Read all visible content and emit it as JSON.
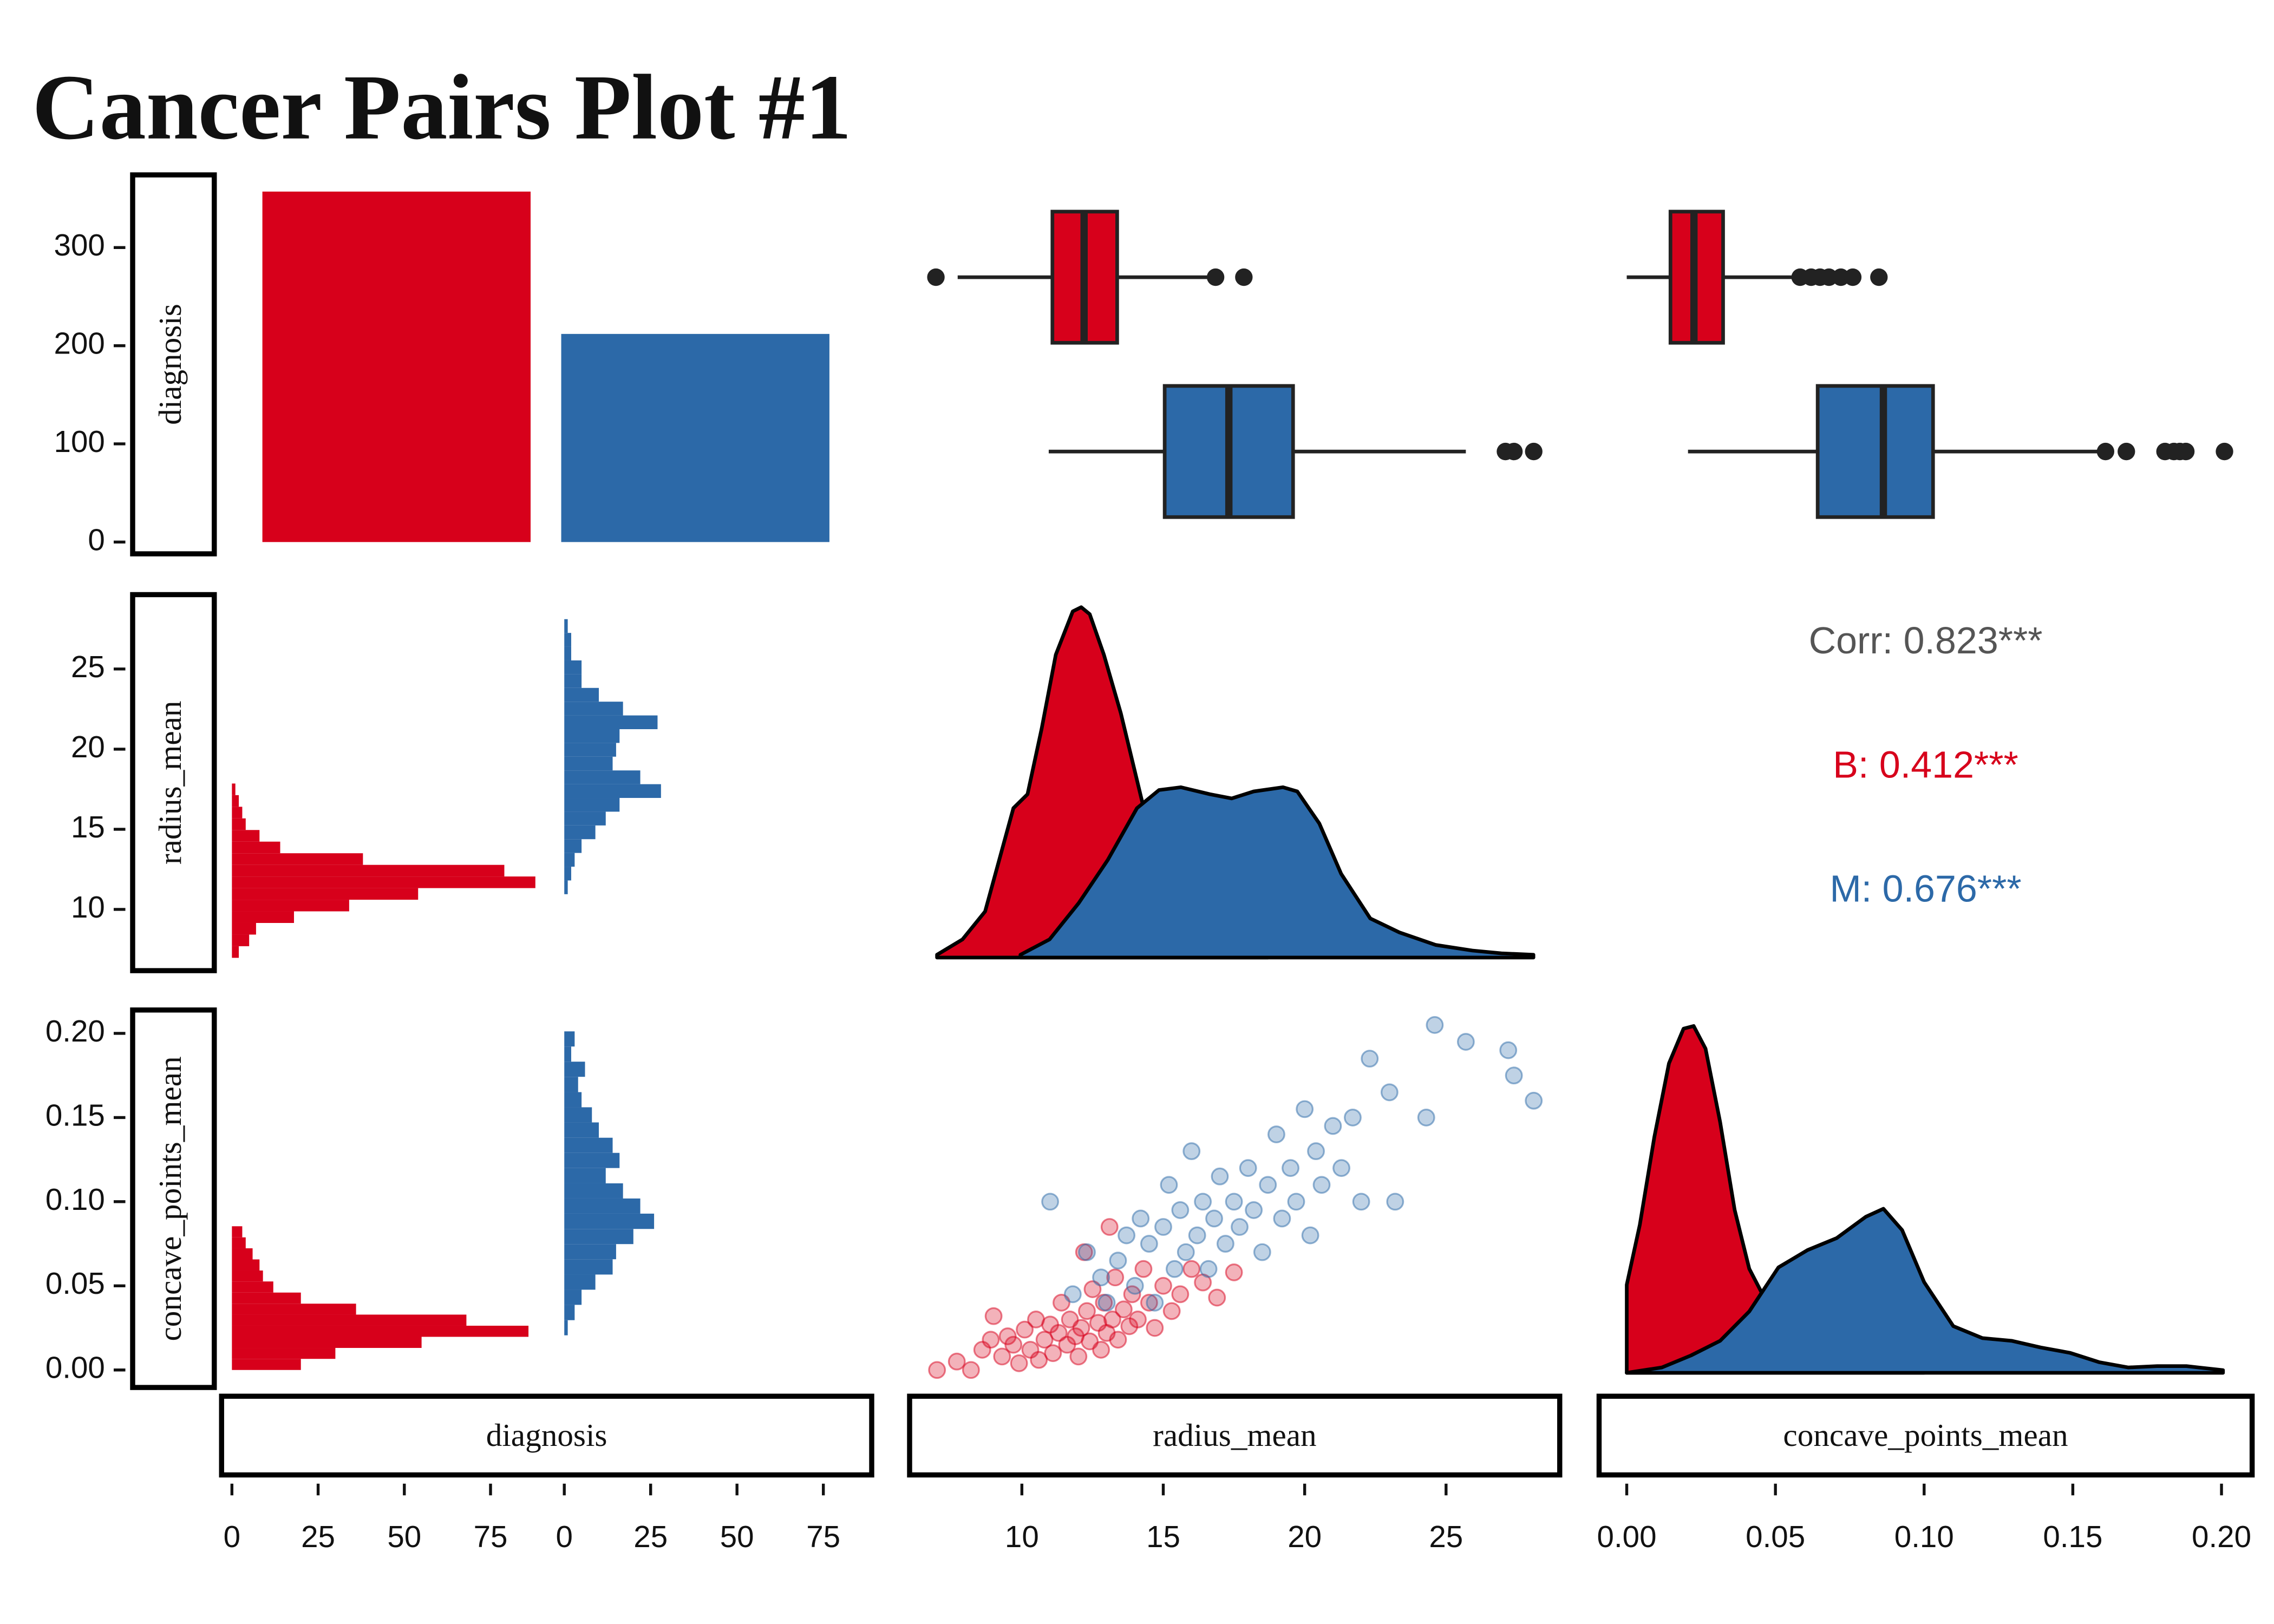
{
  "title": "Cancer Pairs Plot #1",
  "variables": [
    "diagnosis",
    "radius_mean",
    "concave_points_mean"
  ],
  "row_axes": [
    {
      "ylim": [
        -12,
        374
      ],
      "yticks": [
        0,
        100,
        200,
        300
      ]
    },
    {
      "ylim": [
        6.18,
        29.64
      ],
      "yticks": [
        10,
        15,
        20,
        25
      ]
    },
    {
      "ylim": [
        -0.0104,
        0.2139
      ],
      "yticks": [
        {
          "value": 0,
          "label": "0.00"
        },
        0.05,
        {
          "value": 0.1,
          "label": "0.10"
        },
        0.15,
        {
          "value": 0.2,
          "label": "0.20"
        }
      ]
    }
  ],
  "column_axes": [
    [
      {
        "xlim": [
          -3,
          90
        ],
        "xticks": [
          0,
          25,
          50,
          75
        ]
      },
      {
        "xlim": [
          -3,
          89
        ],
        "xticks": [
          0,
          25,
          50,
          75
        ]
      }
    ],
    [
      {
        "xlim": [
          6.03,
          29.02
        ],
        "xticks": [
          10,
          15,
          20,
          25
        ]
      }
    ],
    [
      {
        "xlim": [
          -0.0093,
          0.2103
        ],
        "xticks": [
          {
            "value": 0,
            "label": "0.00"
          },
          0.05,
          {
            "value": 0.1,
            "label": "0.10"
          },
          0.15,
          {
            "value": 0.2,
            "label": "0.20"
          }
        ]
      }
    ]
  ],
  "chart_data": [
    {
      "type": "bar",
      "values": [
        357,
        212
      ],
      "colors": [
        "#d7001b",
        "#2c69a8"
      ]
    },
    {
      "type": "boxplot",
      "series": [
        {
          "color": "#d7001b",
          "whisker_low": 7.73,
          "q1": 11.08,
          "median": 12.2,
          "q3": 13.37,
          "whisker_high": 16.55,
          "outliers": [
            6.96,
            16.85,
            17.85
          ]
        },
        {
          "color": "#2c69a8",
          "whisker_low": 10.95,
          "q1": 15.05,
          "median": 17.32,
          "q3": 19.59,
          "whisker_high": 25.7,
          "outliers": [
            27.1,
            27.4,
            28.1
          ]
        }
      ]
    },
    {
      "type": "boxplot",
      "series": [
        {
          "color": "#d7001b",
          "whisker_low": 0,
          "q1": 0.0147,
          "median": 0.0226,
          "q3": 0.0324,
          "whisker_high": 0.056,
          "outliers": [
            0.0583,
            0.062,
            0.065,
            0.068,
            0.072,
            0.076,
            0.0848
          ]
        },
        {
          "color": "#2c69a8",
          "whisker_low": 0.0206,
          "q1": 0.0642,
          "median": 0.0863,
          "q3": 0.103,
          "whisker_high": 0.159,
          "outliers": [
            0.161,
            0.168,
            0.181,
            0.184,
            0.186,
            0.188,
            0.201
          ]
        }
      ]
    },
    {
      "type": "histogram",
      "series": [
        {
          "color": "#d7001b",
          "bins": [
            6.98,
            7.705,
            8.43,
            9.155,
            9.88,
            10.605,
            11.33,
            12.055,
            12.78,
            13.505,
            14.23,
            14.955,
            15.68,
            16.405,
            17.13,
            17.855
          ],
          "counts": [
            2,
            5,
            7,
            18,
            34,
            54,
            88,
            79,
            38,
            14,
            8,
            4,
            3,
            2,
            1
          ]
        },
        {
          "color": "#2c69a8",
          "bins": [
            10.95,
            11.808,
            12.666,
            13.524,
            14.382,
            15.24,
            16.098,
            16.956,
            17.814,
            18.672,
            19.53,
            20.388,
            21.246,
            22.104,
            22.962,
            23.82,
            24.678,
            25.536,
            26.394,
            27.252,
            28.11
          ],
          "counts": [
            1,
            2,
            3,
            5,
            9,
            12,
            16,
            28,
            22,
            14,
            15,
            16,
            27,
            17,
            10,
            5,
            5,
            2,
            2,
            1
          ]
        }
      ]
    },
    {
      "type": "density",
      "ylim": [
        -0.0094,
        0.26
      ],
      "series": [
        {
          "color": "#d7001b",
          "x": [
            7.0,
            7.9,
            8.7,
            9.2,
            9.7,
            10.2,
            10.7,
            11.2,
            11.8,
            12.1,
            12.4,
            12.9,
            13.5,
            14.0,
            14.5,
            15.0,
            15.6,
            16.4,
            17.4,
            18.7
          ],
          "values": [
            0.002,
            0.013,
            0.033,
            0.07,
            0.107,
            0.117,
            0.164,
            0.217,
            0.248,
            0.251,
            0.246,
            0.217,
            0.175,
            0.133,
            0.091,
            0.06,
            0.033,
            0.016,
            0.007,
            0.002
          ]
        },
        {
          "color": "#2c69a8",
          "x": [
            9.95,
            10.98,
            12.01,
            13.04,
            14.07,
            14.85,
            15.62,
            16.65,
            17.42,
            18.2,
            19.23,
            19.74,
            20.52,
            21.29,
            22.32,
            23.35,
            24.64,
            25.93,
            26.96,
            28.09
          ],
          "values": [
            0.002,
            0.013,
            0.039,
            0.07,
            0.107,
            0.12,
            0.122,
            0.117,
            0.114,
            0.119,
            0.122,
            0.119,
            0.096,
            0.06,
            0.028,
            0.018,
            0.009,
            0.005,
            0.003,
            0.002
          ]
        }
      ]
    },
    {
      "type": "text",
      "lines": [
        {
          "text": "Corr: 0.823***",
          "color": "#555555"
        },
        {
          "text": "B: 0.412***",
          "color": "#d7001b"
        },
        {
          "text": "M: 0.676***",
          "color": "#2c69a8"
        }
      ]
    },
    {
      "type": "histogram",
      "series": [
        {
          "color": "#d7001b",
          "bins": [
            0,
            0.0066,
            0.0131,
            0.0197,
            0.0263,
            0.0329,
            0.0394,
            0.046,
            0.0526,
            0.0591,
            0.0657,
            0.0723,
            0.0788,
            0.0854
          ],
          "counts": [
            20,
            30,
            55,
            86,
            68,
            36,
            20,
            12,
            9,
            8,
            6,
            4,
            3
          ]
        },
        {
          "color": "#2c69a8",
          "bins": [
            0.0206,
            0.0296,
            0.0387,
            0.0477,
            0.0567,
            0.0658,
            0.0748,
            0.0838,
            0.0929,
            0.1019,
            0.1109,
            0.12,
            0.129,
            0.138,
            0.1471,
            0.1561,
            0.1651,
            0.1742,
            0.1832,
            0.1922,
            0.2012
          ],
          "counts": [
            1,
            3,
            5,
            9,
            14,
            15,
            20,
            26,
            22,
            17,
            12,
            16,
            14,
            10,
            8,
            5,
            4,
            6,
            2,
            3
          ]
        }
      ]
    },
    {
      "type": "scatter",
      "series": [
        {
          "color": "#d7001b",
          "x": [
            7.0,
            7.7,
            8.2,
            8.6,
            8.9,
            9.0,
            9.3,
            9.5,
            9.7,
            9.9,
            10.1,
            10.3,
            10.5,
            10.6,
            10.8,
            11.0,
            11.1,
            11.3,
            11.4,
            11.6,
            11.7,
            11.9,
            12.0,
            12.1,
            12.3,
            12.4,
            12.5,
            12.7,
            12.8,
            12.9,
            13.0,
            13.2,
            13.3,
            13.4,
            13.6,
            13.8,
            13.9,
            14.1,
            14.3,
            14.5,
            14.7,
            15.0,
            15.3,
            15.6,
            16.0,
            16.4,
            16.9,
            17.5,
            12.2,
            13.1
          ],
          "values": [
            0.0,
            0.005,
            0.0,
            0.012,
            0.018,
            0.032,
            0.008,
            0.02,
            0.015,
            0.004,
            0.024,
            0.012,
            0.03,
            0.006,
            0.018,
            0.027,
            0.01,
            0.022,
            0.04,
            0.015,
            0.03,
            0.02,
            0.008,
            0.025,
            0.035,
            0.017,
            0.048,
            0.028,
            0.012,
            0.04,
            0.022,
            0.03,
            0.055,
            0.018,
            0.036,
            0.026,
            0.045,
            0.03,
            0.06,
            0.04,
            0.025,
            0.05,
            0.035,
            0.045,
            0.06,
            0.052,
            0.043,
            0.058,
            0.07,
            0.085
          ]
        },
        {
          "color": "#2c69a8",
          "x": [
            11.0,
            11.8,
            12.3,
            12.8,
            13.0,
            13.4,
            13.7,
            14.0,
            14.2,
            14.5,
            14.7,
            15.0,
            15.2,
            15.4,
            15.6,
            15.8,
            16.0,
            16.2,
            16.4,
            16.6,
            16.8,
            17.0,
            17.2,
            17.5,
            17.7,
            18.0,
            18.2,
            18.5,
            18.7,
            19.0,
            19.2,
            19.5,
            19.7,
            20.0,
            20.2,
            20.4,
            20.6,
            21.0,
            21.3,
            21.7,
            22.0,
            22.3,
            23.0,
            23.2,
            24.3,
            24.6,
            25.7,
            27.2,
            27.4,
            28.1
          ],
          "values": [
            0.1,
            0.045,
            0.07,
            0.055,
            0.04,
            0.065,
            0.08,
            0.05,
            0.09,
            0.075,
            0.04,
            0.085,
            0.11,
            0.06,
            0.095,
            0.07,
            0.13,
            0.08,
            0.1,
            0.06,
            0.09,
            0.115,
            0.075,
            0.1,
            0.085,
            0.12,
            0.095,
            0.07,
            0.11,
            0.14,
            0.09,
            0.12,
            0.1,
            0.155,
            0.08,
            0.13,
            0.11,
            0.145,
            0.12,
            0.15,
            0.1,
            0.185,
            0.165,
            0.1,
            0.15,
            0.205,
            0.195,
            0.19,
            0.175,
            0.16
          ]
        }
      ]
    },
    {
      "type": "density",
      "ylim": [
        -1.1,
        27.2
      ],
      "series": [
        {
          "color": "#d7001b",
          "x": [
            0,
            0.0044,
            0.0093,
            0.0142,
            0.0191,
            0.0225,
            0.0265,
            0.0314,
            0.0363,
            0.0412,
            0.0461,
            0.0559,
            0.0657,
            0.0804,
            0.0956,
            0.1
          ],
          "values": [
            6.6,
            11.1,
            17.7,
            23.2,
            25.8,
            26.0,
            24.3,
            18.8,
            12.2,
            7.8,
            5.7,
            4.0,
            1.9,
            0.8,
            0.2,
            0
          ]
        },
        {
          "color": "#2c69a8",
          "x": [
            0,
            0.0118,
            0.0216,
            0.0314,
            0.0412,
            0.051,
            0.0608,
            0.0706,
            0.0804,
            0.0863,
            0.0926,
            0.1,
            0.1098,
            0.1196,
            0.1294,
            0.1392,
            0.149,
            0.1588,
            0.1686,
            0.1784,
            0.1882,
            0.2005
          ],
          "values": [
            0,
            0.4,
            1.3,
            2.4,
            4.6,
            7.9,
            9.2,
            10.1,
            11.7,
            12.3,
            10.7,
            6.8,
            3.5,
            2.6,
            2.4,
            1.9,
            1.5,
            0.8,
            0.4,
            0.5,
            0.5,
            0.2
          ]
        }
      ]
    }
  ]
}
